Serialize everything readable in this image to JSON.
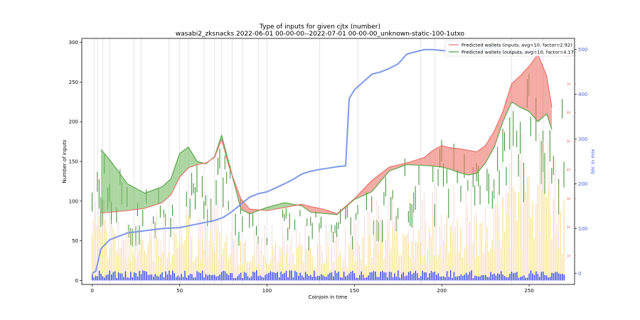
{
  "chart_data": {
    "type": "line",
    "title": "Type of inputs for given cjtx (number)",
    "subtitle": "wasabi2_zksnacks 2022-06-01 00-00-00--2022-07-01 00-00-00_unknown-static-100-1utxo",
    "xlabel": "Coinjoin in time",
    "ylabel": "Number of inputs",
    "ylabel_right": "btc in mix",
    "xlim": [
      -6,
      276
    ],
    "ylim": [
      -5,
      305
    ],
    "y2lim": [
      -25,
      525
    ],
    "y3lim": [
      0,
      86
    ],
    "x_ticks": [
      "0",
      "50",
      "100",
      "150",
      "200",
      "250"
    ],
    "y_ticks": [
      "0",
      "50",
      "100",
      "150",
      "200",
      "250",
      "300"
    ],
    "y2_ticks": [
      "0",
      "100",
      "200",
      "300",
      "400",
      "500"
    ],
    "y3_ticks": [
      "10",
      "20",
      "30",
      "40",
      "50",
      "60",
      "70",
      "80"
    ],
    "legend_position": "top-right",
    "series": [
      {
        "name": "Predicted wallets (inputs, avg=10, factor=2.92)",
        "color": "#e8746a",
        "x": [
          5,
          10,
          20,
          30,
          40,
          45,
          50,
          55,
          60,
          65,
          70,
          74,
          78,
          85,
          90,
          100,
          110,
          115,
          120,
          125,
          130,
          135,
          140,
          150,
          160,
          170,
          180,
          190,
          195,
          200,
          205,
          210,
          215,
          220,
          225,
          230,
          235,
          240,
          245,
          250,
          255,
          260,
          263
        ],
        "values": [
          85,
          86,
          88,
          91,
          98,
          108,
          130,
          142,
          146,
          148,
          155,
          178,
          145,
          103,
          90,
          88,
          92,
          94,
          96,
          93,
          91,
          88,
          84,
          103,
          126,
          143,
          148,
          155,
          164,
          170,
          167,
          166,
          164,
          162,
          170,
          188,
          213,
          248,
          258,
          270,
          285,
          258,
          218
        ]
      },
      {
        "name": "Predicted wallets (outputs, avg=10, factor=4.17)",
        "color": "#5aa84a",
        "x": [
          5,
          10,
          20,
          30,
          40,
          45,
          50,
          55,
          60,
          65,
          70,
          74,
          78,
          85,
          90,
          100,
          110,
          115,
          120,
          125,
          130,
          135,
          140,
          150,
          160,
          170,
          180,
          190,
          195,
          200,
          205,
          210,
          215,
          220,
          225,
          230,
          235,
          240,
          245,
          250,
          255,
          260,
          263
        ],
        "values": [
          165,
          152,
          122,
          110,
          118,
          128,
          160,
          168,
          150,
          147,
          156,
          183,
          150,
          90,
          84,
          92,
          98,
          96,
          94,
          86,
          85,
          84,
          83,
          102,
          112,
          138,
          146,
          145,
          144,
          143,
          140,
          136,
          133,
          135,
          148,
          168,
          200,
          225,
          218,
          213,
          200,
          210,
          190
        ]
      },
      {
        "name": "",
        "axis": "right",
        "color": "#7f98e8",
        "x": [
          0,
          2,
          5,
          10,
          20,
          30,
          40,
          50,
          60,
          70,
          75,
          80,
          90,
          95,
          100,
          110,
          115,
          120,
          125,
          130,
          135,
          140,
          145,
          147,
          150,
          160,
          165,
          170,
          175,
          180,
          190,
          195,
          200,
          210,
          220,
          230,
          240,
          250,
          255,
          260
        ],
        "values": [
          0,
          5,
          55,
          75,
          90,
          95,
          100,
          102,
          110,
          118,
          125,
          138,
          170,
          178,
          182,
          200,
          210,
          222,
          228,
          232,
          235,
          238,
          240,
          390,
          410,
          445,
          450,
          458,
          468,
          490,
          500,
          500,
          498,
          495,
          500,
          505,
          492,
          495,
          502,
          500
        ]
      }
    ]
  }
}
